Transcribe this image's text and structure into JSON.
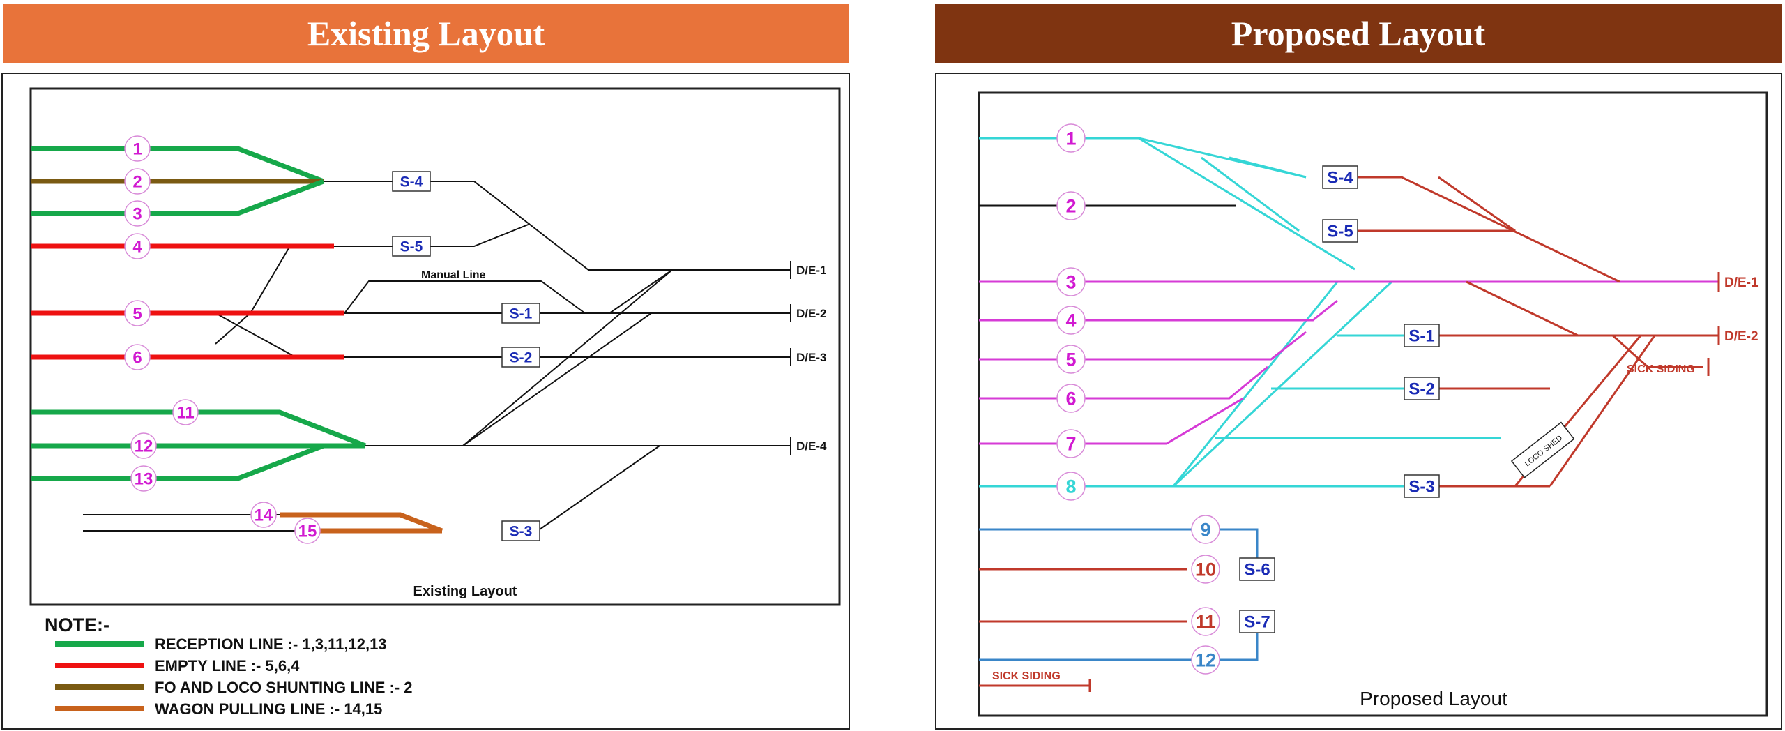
{
  "left": {
    "banner_title": "Existing Layout",
    "caption": "Existing Layout",
    "manual_line_label": "Manual Line",
    "lines": [
      {
        "number": "1",
        "type": "reception"
      },
      {
        "number": "2",
        "type": "fo_loco"
      },
      {
        "number": "3",
        "type": "reception"
      },
      {
        "number": "4",
        "type": "empty"
      },
      {
        "number": "5",
        "type": "empty"
      },
      {
        "number": "6",
        "type": "empty"
      },
      {
        "number": "11",
        "type": "reception"
      },
      {
        "number": "12",
        "type": "reception"
      },
      {
        "number": "13",
        "type": "reception"
      },
      {
        "number": "14",
        "type": "wagon"
      },
      {
        "number": "15",
        "type": "wagon"
      }
    ],
    "signals": [
      "S-4",
      "S-5",
      "S-1",
      "S-2",
      "S-3"
    ],
    "exits": [
      "D/E-1",
      "D/E-2",
      "D/E-3",
      "D/E-4"
    ],
    "note": {
      "title": "NOTE:-",
      "items": [
        {
          "color": "#16a84a",
          "text": "RECEPTION LINE :- 1,3,11,12,13"
        },
        {
          "color": "#ee1111",
          "text": "EMPTY LINE :- 5,6,4"
        },
        {
          "color": "#7a5a12",
          "text": "FO AND LOCO SHUNTING LINE :- 2"
        },
        {
          "color": "#c8621c",
          "text": "WAGON PULLING LINE :- 14,15"
        }
      ]
    }
  },
  "right": {
    "banner_title": "Proposed Layout",
    "caption": "Proposed Layout",
    "lines": [
      "1",
      "2",
      "3",
      "4",
      "5",
      "6",
      "7",
      "8",
      "9",
      "10",
      "11",
      "12"
    ],
    "signals": [
      "S-4",
      "S-5",
      "S-1",
      "S-2",
      "S-3",
      "S-6",
      "S-7"
    ],
    "exits": [
      "D/E-1",
      "D/E-2"
    ],
    "sick_siding_upper": "SICK SIDING",
    "sick_siding_lower": "SICK SIDING",
    "loco_shed": "LOCO SHED"
  },
  "colors": {
    "reception": "#16a84a",
    "empty": "#ee1111",
    "fo_loco": "#7a5a12",
    "wagon": "#c8621c",
    "magenta": "#d63bd6",
    "cyan": "#35d6d6",
    "dark_red": "#c0392b",
    "blue": "#3a86c8",
    "label_magenta": "#d11ad1",
    "signal_blue": "#1a2bb5"
  }
}
